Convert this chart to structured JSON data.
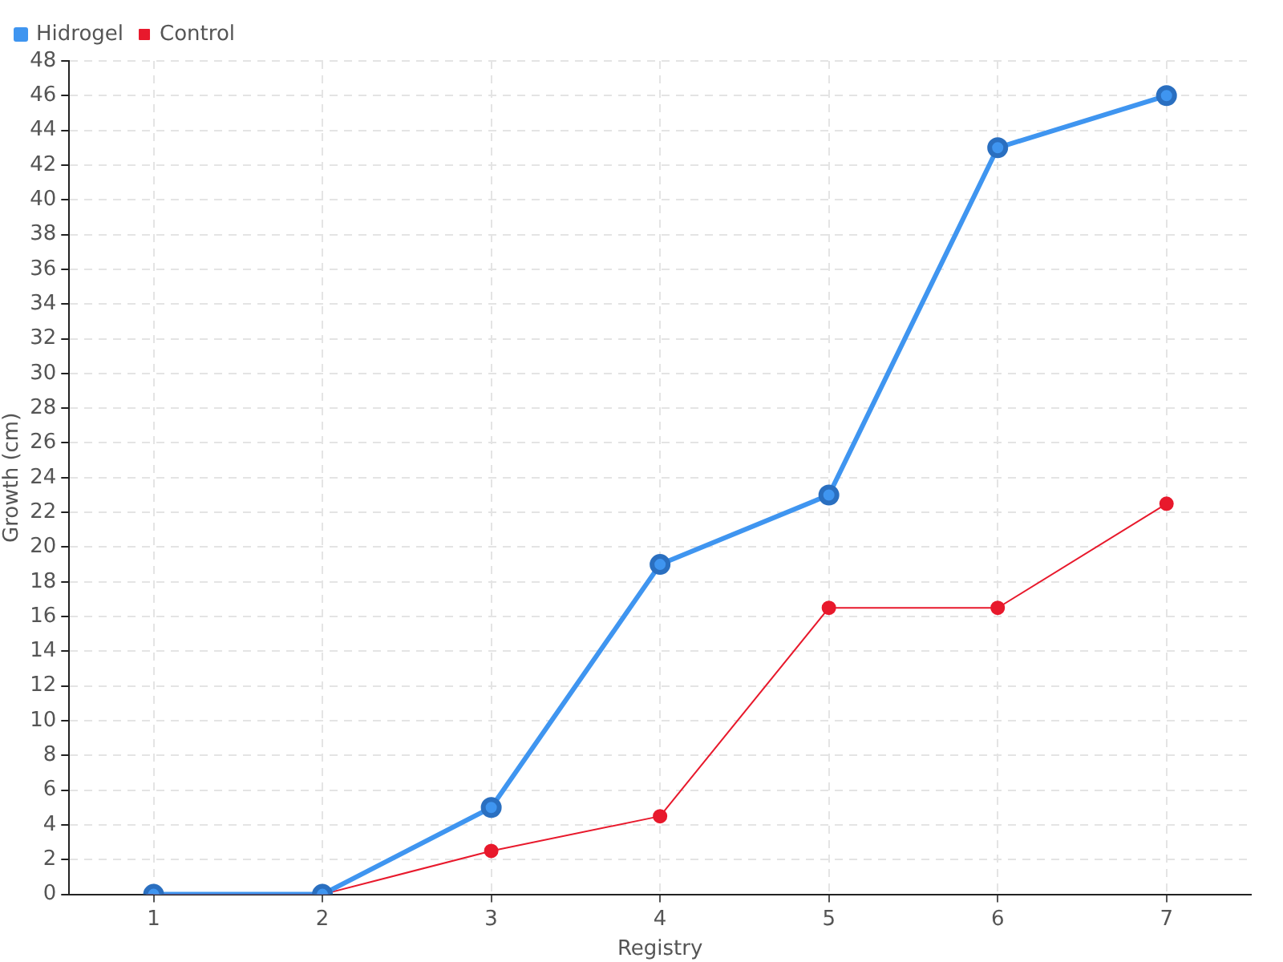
{
  "chart_data": {
    "type": "line",
    "xlabel": "Registry",
    "ylabel": "Growth (cm)",
    "x": [
      1,
      2,
      3,
      4,
      5,
      6,
      7
    ],
    "xlim": [
      0.5,
      7.5
    ],
    "xticks": [
      1,
      2,
      3,
      4,
      5,
      6,
      7
    ],
    "ylim": [
      0,
      48
    ],
    "yticks": [
      0,
      2,
      4,
      6,
      8,
      10,
      12,
      14,
      16,
      18,
      20,
      22,
      24,
      26,
      28,
      30,
      32,
      34,
      36,
      38,
      40,
      42,
      44,
      46,
      48
    ],
    "grid": true,
    "legend": "top left",
    "marker": "circle",
    "series": [
      {
        "name": "Hidrogel",
        "color": "#3f95f0",
        "values": [
          0,
          0,
          5,
          19,
          23,
          43,
          46
        ]
      },
      {
        "name": "Control",
        "color": "#e8192c",
        "values": [
          0,
          0,
          2.5,
          4.5,
          16.5,
          16.5,
          22.5
        ]
      }
    ]
  }
}
